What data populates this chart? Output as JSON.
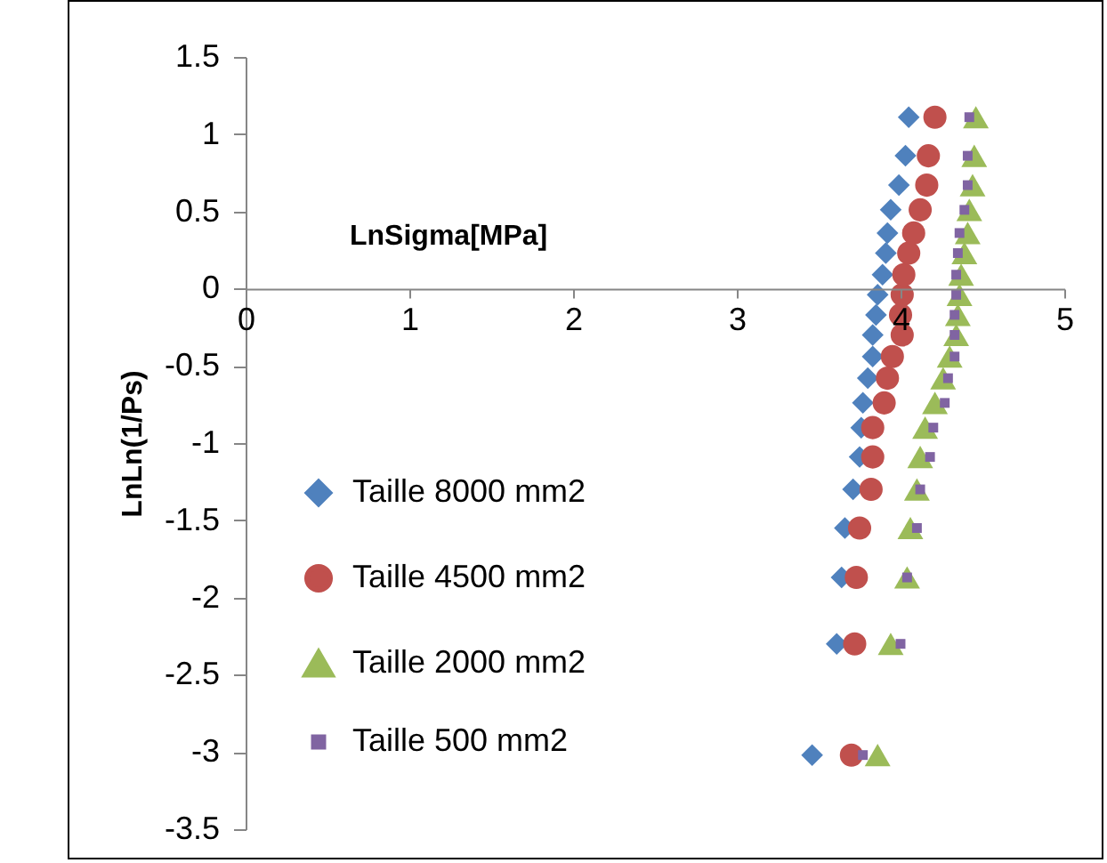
{
  "chart_data": {
    "type": "scatter",
    "xlabel": "LnSigma[MPa]",
    "ylabel": "LnLn(1/Ps)",
    "xlim": [
      0,
      5
    ],
    "xticks": [
      0,
      1,
      2,
      3,
      4,
      5
    ],
    "ylim": [
      -3.5,
      1.5
    ],
    "yticks": [
      1.5,
      1,
      0.5,
      0,
      -0.5,
      -1,
      -1.5,
      -2,
      -2.5,
      -3,
      -3.5
    ],
    "grid": false,
    "legend": "left",
    "series": [
      {
        "name": "Taille 8000 mm2",
        "color": "#4f81bd",
        "marker": "diamond",
        "x": [
          3.46,
          3.61,
          3.64,
          3.66,
          3.71,
          3.75,
          3.76,
          3.77,
          3.8,
          3.83,
          3.83,
          3.85,
          3.86,
          3.89,
          3.91,
          3.92,
          3.94,
          3.99,
          4.03,
          4.05
        ],
        "values": [
          -3.02,
          -2.3,
          -1.87,
          -1.55,
          -1.3,
          -1.09,
          -0.9,
          -0.74,
          -0.58,
          -0.44,
          -0.3,
          -0.17,
          -0.04,
          0.09,
          0.23,
          0.36,
          0.51,
          0.67,
          0.86,
          1.11
        ]
      },
      {
        "name": "Taille 4500 mm2",
        "color": "#c0504d",
        "marker": "circle",
        "x": [
          3.7,
          3.72,
          3.73,
          3.75,
          3.82,
          3.83,
          3.83,
          3.9,
          3.92,
          3.95,
          4.01,
          4.0,
          4.01,
          4.02,
          4.05,
          4.08,
          4.12,
          4.16,
          4.17,
          4.21
        ],
        "values": [
          -3.02,
          -2.3,
          -1.87,
          -1.55,
          -1.3,
          -1.09,
          -0.9,
          -0.74,
          -0.58,
          -0.44,
          -0.3,
          -0.17,
          -0.04,
          0.09,
          0.23,
          0.36,
          0.51,
          0.67,
          0.86,
          1.11
        ]
      },
      {
        "name": "Taille 2000 mm2",
        "color": "#9bbb59",
        "marker": "triangle",
        "x": [
          3.86,
          3.94,
          4.04,
          4.06,
          4.1,
          4.12,
          4.15,
          4.21,
          4.26,
          4.3,
          4.34,
          4.35,
          4.36,
          4.37,
          4.39,
          4.41,
          4.42,
          4.44,
          4.45,
          4.46
        ],
        "values": [
          -3.02,
          -2.3,
          -1.87,
          -1.55,
          -1.3,
          -1.09,
          -0.9,
          -0.74,
          -0.58,
          -0.44,
          -0.3,
          -0.17,
          -0.04,
          0.09,
          0.23,
          0.36,
          0.51,
          0.67,
          0.86,
          1.11
        ]
      },
      {
        "name": "Taille 500 mm2",
        "color": "#8064a2",
        "marker": "square",
        "x": [
          3.77,
          4.0,
          4.04,
          4.1,
          4.12,
          4.18,
          4.2,
          4.27,
          4.29,
          4.33,
          4.33,
          4.33,
          4.34,
          4.34,
          4.35,
          4.36,
          4.39,
          4.41,
          4.41,
          4.42
        ],
        "values": [
          -3.02,
          -2.3,
          -1.87,
          -1.55,
          -1.3,
          -1.09,
          -0.9,
          -0.74,
          -0.58,
          -0.44,
          -0.3,
          -0.17,
          -0.04,
          0.09,
          0.23,
          0.36,
          0.51,
          0.67,
          0.86,
          1.11
        ]
      }
    ]
  }
}
